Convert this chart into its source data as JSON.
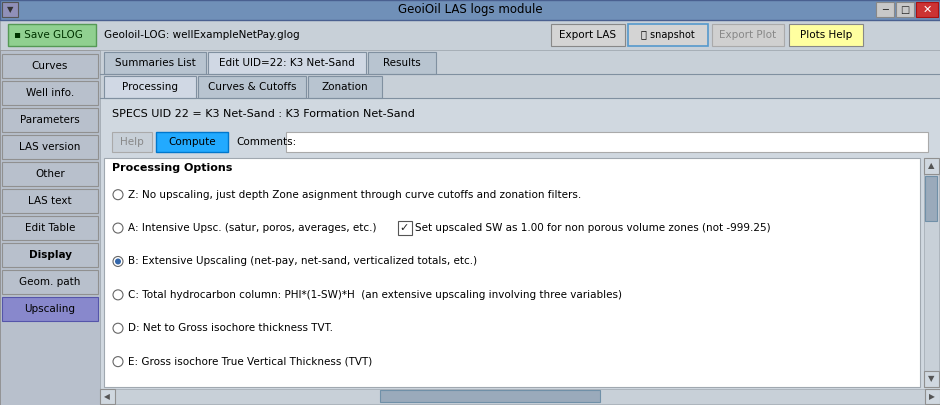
{
  "title": "GeoiOil LAS logs module",
  "window_title": "GeoiOil LAS logs module",
  "window_bg": "#c0c0c8",
  "titlebar_bg": "#7090b8",
  "titlebar_text": "GeoiOil LAS logs module",
  "left_panel_bg": "#b8c0cc",
  "content_bg": "#c8d0d8",
  "inner_bg": "#d0d8e0",
  "white": "#ffffff",
  "left_panel_buttons": [
    "Curves",
    "Well info.",
    "Parameters",
    "LAS version",
    "Other",
    "LAS text",
    "Edit Table",
    "Display",
    "Geom. path",
    "Upscaling"
  ],
  "left_panel_highlight": "Upscaling",
  "left_panel_bold": "Display",
  "save_glog_label": "Save GLOG",
  "save_glog_color": "#90d090",
  "glog_label": "Geoloil-LOG: wellExampleNetPay.glog",
  "top_buttons": [
    "Export LAS",
    "snapshot",
    "Export Plot",
    "Plots Help"
  ],
  "top_button_colors": [
    "#d4d4d4",
    "#d4d4d4",
    "#d8d8d8",
    "#ffffa0"
  ],
  "snapshot_has_icon": true,
  "tab1_labels": [
    "Summaries List",
    "Edit UID=22: K3 Net-Sand",
    "Results"
  ],
  "tab1_active": 1,
  "tab2_labels": [
    "Processing",
    "Curves & Cutoffs",
    "Zonation"
  ],
  "tab2_active": 0,
  "specs_text": "SPECS UID 22 = K3 Net-Sand : K3 Formation Net-Sand",
  "help_label": "Help",
  "compute_label": "Compute",
  "compute_btn_color": "#22aaff",
  "comments_label": "Comments:",
  "processing_options_title": "Processing Options",
  "radio_options": [
    "Z: No upscaling, just depth Zone asignment through curve cutoffs and zonation filters.",
    "A: Intensive Upsc. (satur, poros, averages, etc.)",
    "B: Extensive Upscaling (net-pay, net-sand, verticalized totals, etc.)",
    "C: Total hydrocarbon column: PHI*(1-SW)*H  (an extensive upscaling involving three variables)",
    "D: Net to Gross isochore thickness TVT.",
    "E: Gross isochore True Vertical Thickness (TVT)"
  ],
  "radio_selected": 2,
  "checkbox_text": "Set upscaled SW as 1.00 for non porous volume zones (not -999.25)"
}
